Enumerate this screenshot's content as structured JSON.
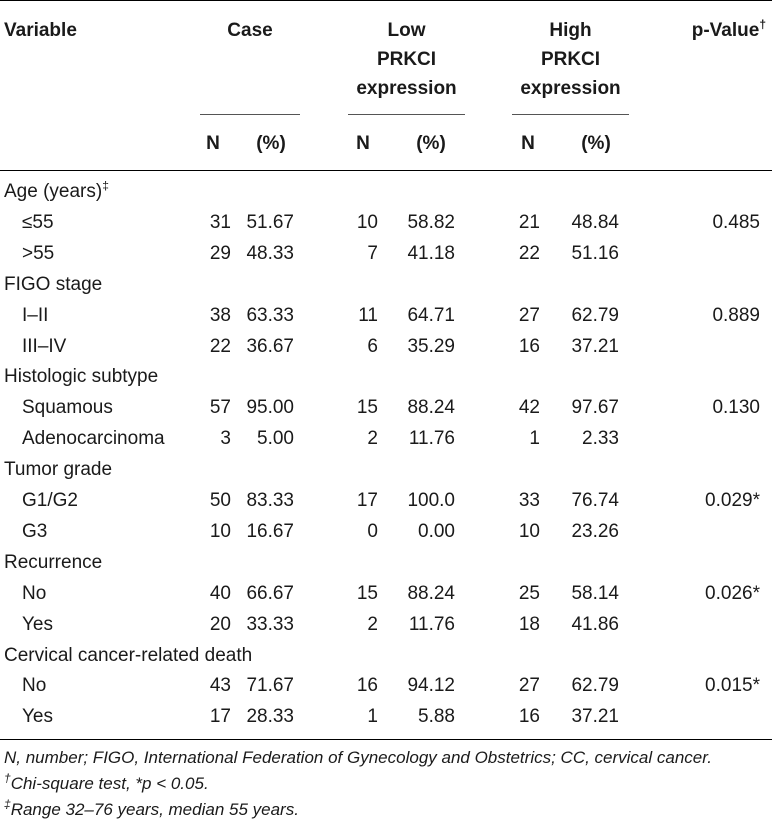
{
  "table": {
    "header": {
      "variable": "Variable",
      "case": "Case",
      "low": [
        "Low",
        "PRKCI",
        "expression"
      ],
      "high": [
        "High",
        "PRKCI",
        "expression"
      ],
      "pvalue": "p-Value",
      "pvalue_mark": "†",
      "n": "N",
      "pct": "(%)"
    },
    "groups": [
      {
        "label": "Age (years)",
        "mark": "‡",
        "rows": [
          {
            "label": "≤55",
            "case_n": "31",
            "case_pct": "51.67",
            "low_n": "10",
            "low_pct": "58.82",
            "high_n": "21",
            "high_pct": "48.84",
            "p": "0.485"
          },
          {
            "label": ">55",
            "case_n": "29",
            "case_pct": "48.33",
            "low_n": "7",
            "low_pct": "41.18",
            "high_n": "22",
            "high_pct": "51.16",
            "p": ""
          }
        ]
      },
      {
        "label": "FIGO stage",
        "mark": "",
        "rows": [
          {
            "label": "I–II",
            "case_n": "38",
            "case_pct": "63.33",
            "low_n": "11",
            "low_pct": "64.71",
            "high_n": "27",
            "high_pct": "62.79",
            "p": "0.889"
          },
          {
            "label": "III–IV",
            "case_n": "22",
            "case_pct": "36.67",
            "low_n": "6",
            "low_pct": "35.29",
            "high_n": "16",
            "high_pct": "37.21",
            "p": ""
          }
        ]
      },
      {
        "label": "Histologic subtype",
        "mark": "",
        "rows": [
          {
            "label": "Squamous",
            "case_n": "57",
            "case_pct": "95.00",
            "low_n": "15",
            "low_pct": "88.24",
            "high_n": "42",
            "high_pct": "97.67",
            "p": "0.130"
          },
          {
            "label": "Adenocarcinoma",
            "case_n": "3",
            "case_pct": "5.00",
            "low_n": "2",
            "low_pct": "11.76",
            "high_n": "1",
            "high_pct": "2.33",
            "p": ""
          }
        ]
      },
      {
        "label": "Tumor grade",
        "mark": "",
        "rows": [
          {
            "label": "G1/G2",
            "case_n": "50",
            "case_pct": "83.33",
            "low_n": "17",
            "low_pct": "100.0",
            "high_n": "33",
            "high_pct": "76.74",
            "p": "0.029*"
          },
          {
            "label": "G3",
            "case_n": "10",
            "case_pct": "16.67",
            "low_n": "0",
            "low_pct": "0.00",
            "high_n": "10",
            "high_pct": "23.26",
            "p": ""
          }
        ]
      },
      {
        "label": "Recurrence",
        "mark": "",
        "rows": [
          {
            "label": "No",
            "case_n": "40",
            "case_pct": "66.67",
            "low_n": "15",
            "low_pct": "88.24",
            "high_n": "25",
            "high_pct": "58.14",
            "p": "0.026*"
          },
          {
            "label": "Yes",
            "case_n": "20",
            "case_pct": "33.33",
            "low_n": "2",
            "low_pct": "11.76",
            "high_n": "18",
            "high_pct": "41.86",
            "p": ""
          }
        ]
      },
      {
        "label": "Cervical cancer-related death",
        "mark": "",
        "rows": [
          {
            "label": "No",
            "case_n": "43",
            "case_pct": "71.67",
            "low_n": "16",
            "low_pct": "94.12",
            "high_n": "27",
            "high_pct": "62.79",
            "p": "0.015*"
          },
          {
            "label": "Yes",
            "case_n": "17",
            "case_pct": "28.33",
            "low_n": "1",
            "low_pct": "5.88",
            "high_n": "16",
            "high_pct": "37.21",
            "p": ""
          }
        ]
      }
    ]
  },
  "footnotes": {
    "abbrev": "N, number; FIGO, International Federation of Gynecology and Obstetrics; CC, cervical cancer.",
    "chi_mark": "†",
    "chi": "Chi-square test, *p < 0.05.",
    "range_mark": "‡",
    "range": "Range 32–76 years, median 55 years."
  }
}
